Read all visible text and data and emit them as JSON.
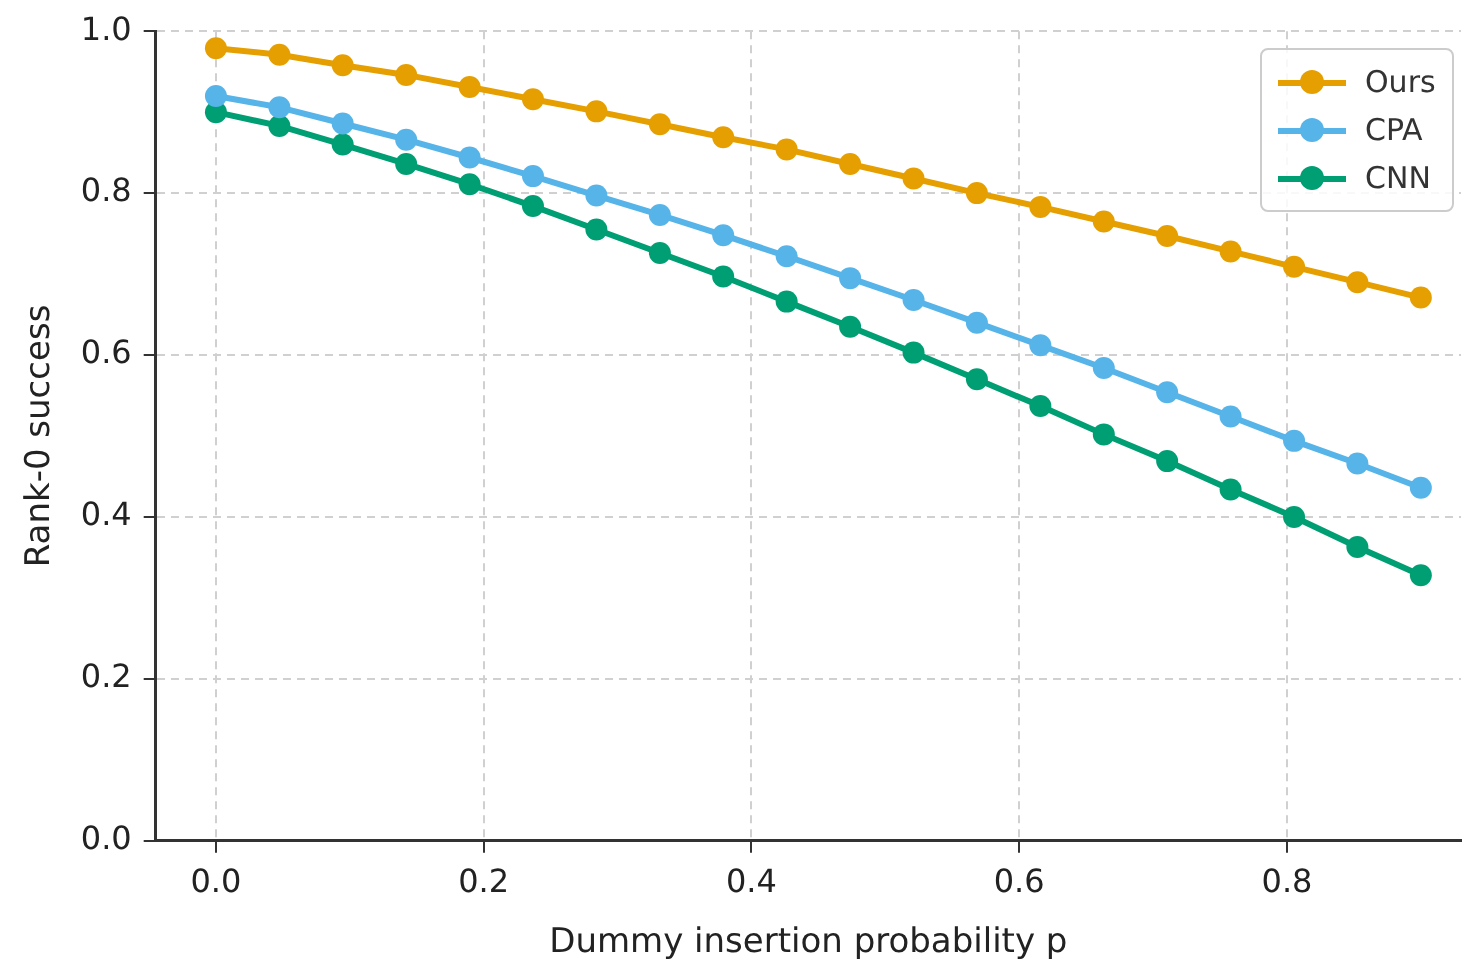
{
  "chart_data": {
    "type": "line",
    "xlabel": "Dummy insertion probability p",
    "ylabel": "Rank-0 success",
    "x": [
      0,
      0.0474,
      0.0947,
      0.1421,
      0.1895,
      0.2368,
      0.2842,
      0.3316,
      0.3789,
      0.4263,
      0.4737,
      0.5211,
      0.5684,
      0.6158,
      0.6632,
      0.7105,
      0.7579,
      0.8053,
      0.8526,
      0.9
    ],
    "series": [
      {
        "name": "Ours",
        "color": "#e69f00",
        "values": [
          0.979,
          0.971,
          0.958,
          0.946,
          0.931,
          0.916,
          0.901,
          0.885,
          0.869,
          0.854,
          0.836,
          0.818,
          0.8,
          0.783,
          0.765,
          0.747,
          0.728,
          0.709,
          0.69,
          0.671
        ]
      },
      {
        "name": "CPA",
        "color": "#56b4e9",
        "values": [
          0.92,
          0.906,
          0.886,
          0.866,
          0.844,
          0.821,
          0.797,
          0.773,
          0.748,
          0.722,
          0.695,
          0.668,
          0.64,
          0.612,
          0.584,
          0.554,
          0.524,
          0.494,
          0.466,
          0.436
        ]
      },
      {
        "name": "CNN",
        "color": "#009e73",
        "values": [
          0.9,
          0.883,
          0.86,
          0.836,
          0.811,
          0.784,
          0.755,
          0.726,
          0.697,
          0.666,
          0.635,
          0.603,
          0.57,
          0.537,
          0.502,
          0.469,
          0.434,
          0.4,
          0.363,
          0.328
        ]
      }
    ],
    "xlim": [
      -0.045,
      0.93
    ],
    "ylim": [
      0,
      1
    ],
    "xticks": [
      {
        "value": 0,
        "label": "0.0"
      },
      {
        "value": 0.2,
        "label": "0.2"
      },
      {
        "value": 0.4,
        "label": "0.4"
      },
      {
        "value": 0.6,
        "label": "0.6"
      },
      {
        "value": 0.8,
        "label": "0.8"
      }
    ],
    "yticks": [
      {
        "value": 0,
        "label": "0.0"
      },
      {
        "value": 0.2,
        "label": "0.2"
      },
      {
        "value": 0.4,
        "label": "0.4"
      },
      {
        "value": 0.6,
        "label": "0.6"
      },
      {
        "value": 0.8,
        "label": "0.8"
      },
      {
        "value": 1,
        "label": "1.0"
      }
    ],
    "grid": true,
    "legend": "top right",
    "marker": "circle",
    "line_style": "solid"
  }
}
